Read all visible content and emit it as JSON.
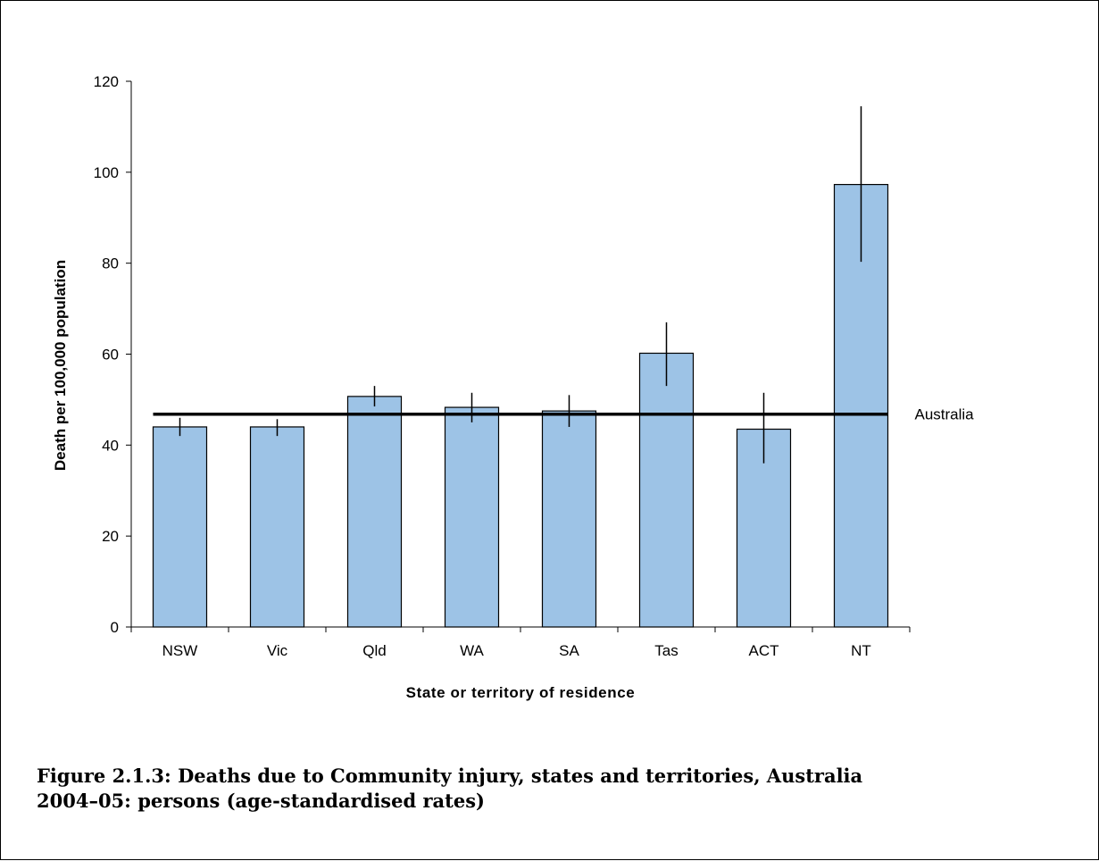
{
  "chart_data": {
    "type": "bar",
    "categories": [
      "NSW",
      "Vic",
      "Qld",
      "WA",
      "SA",
      "Tas",
      "ACT",
      "NT"
    ],
    "values": [
      44,
      44,
      50.7,
      48.3,
      47.5,
      60.2,
      43.5,
      97.3
    ],
    "error_bars": {
      "lower": [
        42,
        42,
        48.5,
        45,
        44,
        53,
        36,
        80.3
      ],
      "upper": [
        46,
        45.7,
        53,
        51.5,
        51,
        67,
        51.5,
        114.5
      ]
    },
    "reference_line": {
      "label": "Australia",
      "value": 46.8
    },
    "xlabel": "State or territory of residence",
    "ylabel": "Death per 100,000 population",
    "ylim": [
      0,
      120
    ],
    "yticks": [
      0,
      20,
      40,
      60,
      80,
      100,
      120
    ],
    "grid": false,
    "colors": {
      "bar_fill": "#9dc3e6",
      "bar_stroke": "#000000",
      "line": "#000000"
    }
  },
  "caption": {
    "line1": "Figure 2.1.3: Deaths due to Community injury, states and territories, Australia",
    "line2": "2004–05: persons (age-standardised rates)"
  }
}
